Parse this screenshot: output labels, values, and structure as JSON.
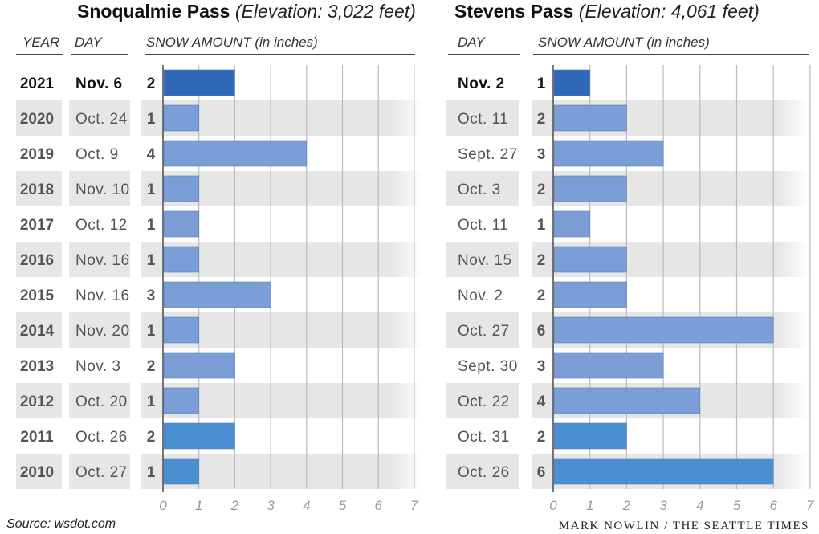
{
  "header": {
    "left_title_bold": "Snoqualmie Pass",
    "left_title_italic": "(Elevation: 3,022 feet)",
    "right_title_bold": "Stevens Pass",
    "right_title_italic": "(Elevation: 4,061 feet)",
    "col_year": "YEAR",
    "col_day": "DAY",
    "col_snow": "SNOW AMOUNT (in inches)"
  },
  "footer": {
    "source": "Source: wsdot.com",
    "credit": "MARK NOWLIN / THE SEATTLE TIMES"
  },
  "colors": {
    "highlight_bar": "#2f68b6",
    "normal_bar": "#7a9ed5",
    "recent_bar": "#4a8fd0",
    "stripe": "#e6e6e6",
    "grid": "#bbbbbb"
  },
  "chart_data": [
    {
      "type": "bar",
      "orientation": "horizontal",
      "title": "Snoqualmie Pass",
      "subtitle": "(Elevation: 3,022 feet)",
      "xlabel": "SNOW AMOUNT (in inches)",
      "xlim": [
        0,
        7
      ],
      "xticks": [
        0,
        1,
        2,
        3,
        4,
        5,
        6,
        7
      ],
      "grid": true,
      "categories": [
        "2021",
        "2020",
        "2019",
        "2018",
        "2017",
        "2016",
        "2015",
        "2014",
        "2013",
        "2012",
        "2011",
        "2010"
      ],
      "days": [
        "Nov. 6",
        "Oct. 24",
        "Oct. 9",
        "Nov. 10",
        "Oct. 12",
        "Nov. 16",
        "Nov. 16",
        "Nov. 20",
        "Nov. 3",
        "Oct. 20",
        "Oct. 26",
        "Oct. 27"
      ],
      "values": [
        2,
        1,
        4,
        1,
        1,
        1,
        3,
        1,
        2,
        1,
        2,
        1
      ]
    },
    {
      "type": "bar",
      "orientation": "horizontal",
      "title": "Stevens Pass",
      "subtitle": "(Elevation: 4,061 feet)",
      "xlabel": "SNOW AMOUNT (in inches)",
      "xlim": [
        0,
        7
      ],
      "xticks": [
        0,
        1,
        2,
        3,
        4,
        5,
        6,
        7
      ],
      "grid": true,
      "categories": [
        "2021",
        "2020",
        "2019",
        "2018",
        "2017",
        "2016",
        "2015",
        "2014",
        "2013",
        "2012",
        "2011",
        "2010"
      ],
      "days": [
        "Nov. 2",
        "Oct. 11",
        "Sept. 27",
        "Oct. 3",
        "Oct. 11",
        "Nov. 15",
        "Nov. 2",
        "Oct. 27",
        "Sept. 30",
        "Oct. 22",
        "Oct. 31",
        "Oct. 26"
      ],
      "values": [
        1,
        2,
        3,
        2,
        1,
        2,
        2,
        6,
        3,
        4,
        2,
        6
      ]
    }
  ]
}
